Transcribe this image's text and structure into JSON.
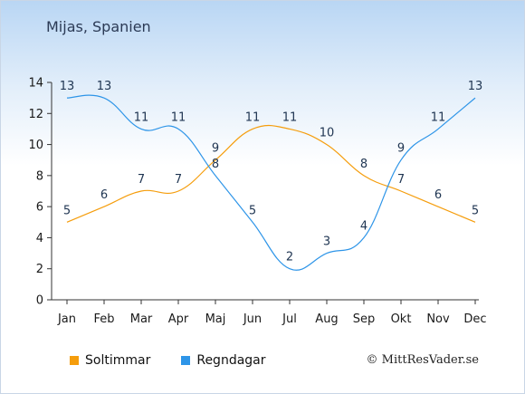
{
  "title": "Mijas, Spanien",
  "copyright": "© MittResVader.se",
  "chart_data": {
    "type": "line",
    "categories": [
      "Jan",
      "Feb",
      "Mar",
      "Apr",
      "Maj",
      "Jun",
      "Jul",
      "Aug",
      "Sep",
      "Okt",
      "Nov",
      "Dec"
    ],
    "ylim": [
      0,
      14
    ],
    "yticks": [
      0,
      2,
      4,
      6,
      8,
      10,
      12,
      14
    ],
    "grid": false,
    "legend_position": "bottom-left",
    "series": [
      {
        "name": "Soltimmar",
        "color": "#f59d0c",
        "values": [
          5,
          6,
          7,
          7,
          9,
          11,
          11,
          10,
          8,
          7,
          6,
          5
        ]
      },
      {
        "name": "Regndagar",
        "color": "#2e95e8",
        "values": [
          13,
          13,
          11,
          11,
          8,
          5,
          2,
          3,
          4,
          9,
          11,
          13
        ]
      }
    ]
  }
}
